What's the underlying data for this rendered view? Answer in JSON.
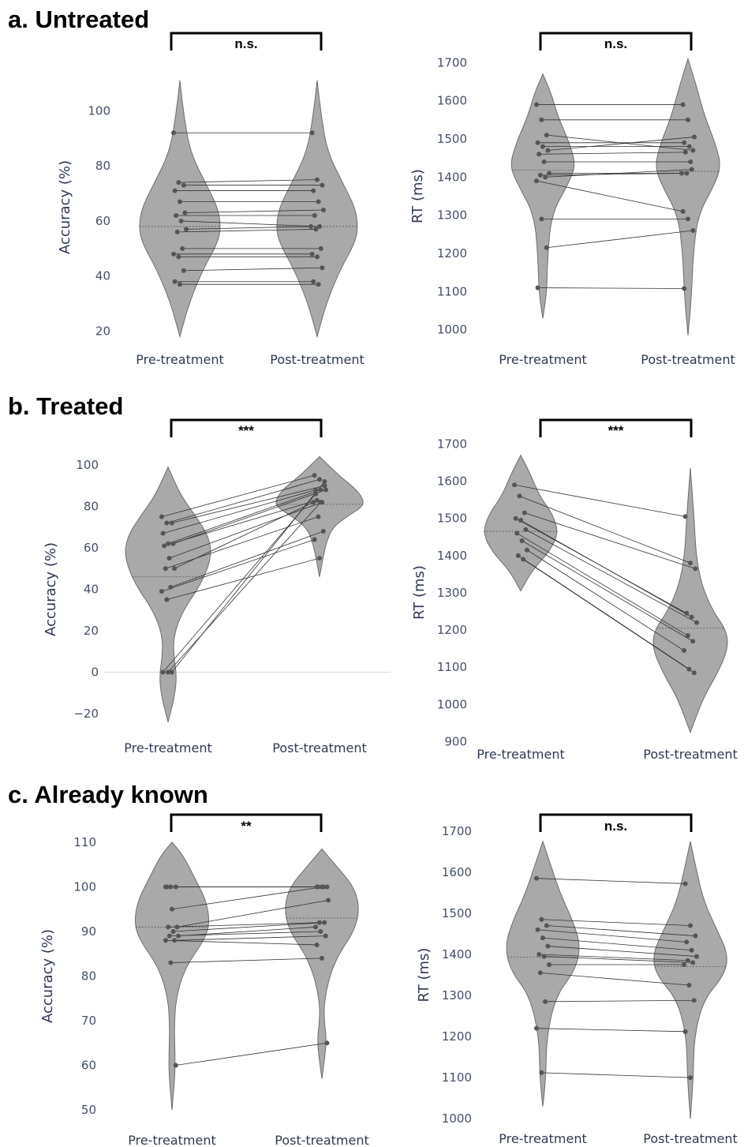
{
  "sections": [
    {
      "id": "a",
      "title": "a. Untreated"
    },
    {
      "id": "b",
      "title": "b. Treated"
    },
    {
      "id": "c",
      "title": "c. Already known"
    }
  ],
  "chart_data": [
    {
      "id": "a-acc",
      "type": "violin-paired",
      "ylabel": "Accuracy (%)",
      "categories": [
        "Pre-treatment",
        "Post-treatment"
      ],
      "yticks": [
        20,
        40,
        60,
        80,
        100
      ],
      "ylim": [
        17,
        113
      ],
      "significance": "n.s.",
      "median": [
        58,
        58
      ],
      "profile": [
        {
          "y": [
            18,
            30,
            42,
            52,
            58,
            65,
            73,
            85,
            98,
            111
          ],
          "w": [
            0,
            0.22,
            0.55,
            0.92,
            1.0,
            0.92,
            0.65,
            0.25,
            0.1,
            0
          ]
        },
        {
          "y": [
            18,
            30,
            42,
            52,
            58,
            65,
            73,
            85,
            98,
            111
          ],
          "w": [
            0,
            0.22,
            0.55,
            0.92,
            1.0,
            0.92,
            0.65,
            0.25,
            0.1,
            0
          ]
        }
      ],
      "pre": [
        92,
        74,
        73,
        71,
        67,
        63,
        62,
        60,
        57,
        56,
        50,
        48,
        47,
        42,
        38,
        37
      ],
      "post": [
        92,
        75,
        73,
        71,
        67,
        64,
        62,
        58,
        58,
        57,
        50,
        48,
        47,
        43,
        38,
        37
      ]
    },
    {
      "id": "a-rt",
      "type": "violin-paired",
      "ylabel": "RT (ms)",
      "categories": [
        "Pre-treatment",
        "Post-treatment"
      ],
      "yticks": [
        1000,
        1100,
        1200,
        1300,
        1400,
        1500,
        1600,
        1700
      ],
      "ylim": [
        985,
        1715
      ],
      "significance": "n.s.",
      "median": [
        1418,
        1415
      ],
      "profile": [
        {
          "y": [
            1030,
            1100,
            1180,
            1300,
            1380,
            1430,
            1490,
            1560,
            1620,
            1670
          ],
          "w": [
            0,
            0.12,
            0.14,
            0.25,
            0.75,
            1.0,
            0.8,
            0.45,
            0.25,
            0
          ]
        },
        {
          "y": [
            985,
            1080,
            1200,
            1300,
            1380,
            1430,
            1490,
            1560,
            1640,
            1710
          ],
          "w": [
            0,
            0.1,
            0.16,
            0.3,
            0.8,
            1.0,
            0.82,
            0.5,
            0.25,
            0
          ]
        }
      ],
      "pre": [
        1590,
        1550,
        1510,
        1490,
        1480,
        1470,
        1460,
        1440,
        1410,
        1405,
        1400,
        1390,
        1290,
        1215,
        1110
      ],
      "post": [
        1590,
        1550,
        1470,
        1490,
        1480,
        1505,
        1465,
        1440,
        1410,
        1410,
        1420,
        1310,
        1290,
        1260,
        1108
      ]
    },
    {
      "id": "b-acc",
      "type": "violin-paired",
      "ylabel": "Accuracy (%)",
      "categories": [
        "Pre-treatment",
        "Post-treatment"
      ],
      "yticks": [
        -20,
        0,
        20,
        40,
        60,
        80,
        100
      ],
      "ylim": [
        -28,
        108
      ],
      "significance": "***",
      "median": [
        46,
        81
      ],
      "zero_line": true,
      "profile": [
        {
          "y": [
            -24,
            -12,
            -2,
            8,
            18,
            30,
            42,
            55,
            65,
            75,
            85,
            99
          ],
          "w": [
            0,
            0.15,
            0.2,
            0.13,
            0.13,
            0.35,
            0.75,
            1.0,
            0.95,
            0.65,
            0.3,
            0
          ]
        },
        {
          "y": [
            46,
            55,
            62,
            70,
            76,
            80,
            84,
            89,
            94,
            99,
            104
          ],
          "w": [
            0,
            0.08,
            0.15,
            0.3,
            0.7,
            1.0,
            1.0,
            0.8,
            0.5,
            0.25,
            0
          ]
        }
      ],
      "pre": [
        75,
        72,
        72,
        67,
        62,
        62,
        61,
        55,
        50,
        50,
        41,
        39,
        35,
        0,
        0,
        0
      ],
      "post": [
        95,
        93,
        90,
        88,
        88,
        88,
        83,
        82,
        82,
        75,
        68,
        64,
        55,
        92,
        86,
        82
      ]
    },
    {
      "id": "b-rt",
      "type": "violin-paired",
      "ylabel": "RT (ms)",
      "categories": [
        "Pre-treatment",
        "Post-treatment"
      ],
      "yticks": [
        900,
        1000,
        1100,
        1200,
        1300,
        1400,
        1500,
        1600,
        1700
      ],
      "ylim": [
        882,
        1720
      ],
      "significance": "***",
      "median": [
        1465,
        1205
      ],
      "profile": [
        {
          "y": [
            1305,
            1360,
            1410,
            1460,
            1510,
            1560,
            1620,
            1670
          ],
          "w": [
            0,
            0.3,
            0.75,
            1.0,
            0.85,
            0.5,
            0.25,
            0
          ]
        },
        {
          "y": [
            925,
            1020,
            1080,
            1150,
            1200,
            1250,
            1320,
            1400,
            1500,
            1635
          ],
          "w": [
            0,
            0.35,
            0.7,
            1.0,
            0.95,
            0.6,
            0.3,
            0.15,
            0.1,
            0
          ]
        }
      ],
      "pre": [
        1590,
        1560,
        1515,
        1500,
        1495,
        1470,
        1460,
        1440,
        1415,
        1400,
        1390
      ],
      "post": [
        1505,
        1380,
        1365,
        1245,
        1235,
        1220,
        1185,
        1170,
        1145,
        1095,
        1085
      ]
    },
    {
      "id": "c-acc",
      "type": "violin-paired",
      "ylabel": "Accuracy (%)",
      "categories": [
        "Pre-treatment",
        "Post-treatment"
      ],
      "yticks": [
        50,
        60,
        70,
        80,
        90,
        100,
        110
      ],
      "ylim": [
        47,
        113
      ],
      "significance": "**",
      "median": [
        91,
        93
      ],
      "profile": [
        {
          "y": [
            50,
            58,
            63,
            68,
            75,
            82,
            88,
            92,
            97,
            102,
            107,
            110
          ],
          "w": [
            0,
            0.08,
            0.08,
            0.06,
            0.1,
            0.35,
            0.85,
            1.0,
            0.9,
            0.6,
            0.3,
            0
          ]
        },
        {
          "y": [
            57,
            62,
            66,
            70,
            74,
            80,
            85,
            90,
            95,
            100,
            105,
            108.5
          ],
          "w": [
            0,
            0.08,
            0.12,
            0.06,
            0.06,
            0.2,
            0.45,
            0.85,
            1.0,
            0.85,
            0.35,
            0
          ]
        }
      ],
      "pre": [
        100,
        100,
        100,
        100,
        95,
        91,
        91,
        90,
        89,
        89,
        88,
        88,
        83,
        60
      ],
      "post": [
        100,
        100,
        100,
        100,
        100,
        97,
        92,
        92,
        91,
        90,
        89,
        87,
        84,
        65
      ]
    },
    {
      "id": "c-rt",
      "type": "violin-paired",
      "ylabel": "RT (ms)",
      "categories": [
        "Pre-treatment",
        "Post-treatment"
      ],
      "yticks": [
        1000,
        1100,
        1200,
        1300,
        1400,
        1500,
        1600,
        1700
      ],
      "ylim": [
        985,
        1715
      ],
      "significance": "n.s.",
      "median": [
        1393,
        1370
      ],
      "profile": [
        {
          "y": [
            1030,
            1100,
            1200,
            1300,
            1360,
            1420,
            1480,
            1550,
            1620,
            1675
          ],
          "w": [
            0,
            0.08,
            0.1,
            0.35,
            0.85,
            1.0,
            0.8,
            0.45,
            0.2,
            0
          ]
        },
        {
          "y": [
            1000,
            1100,
            1200,
            1290,
            1350,
            1400,
            1460,
            1530,
            1610,
            1675
          ],
          "w": [
            0,
            0.08,
            0.1,
            0.35,
            0.9,
            1.0,
            0.7,
            0.35,
            0.15,
            0
          ]
        }
      ],
      "pre": [
        1585,
        1485,
        1470,
        1460,
        1440,
        1420,
        1400,
        1395,
        1375,
        1355,
        1285,
        1220,
        1112
      ],
      "post": [
        1572,
        1470,
        1445,
        1430,
        1410,
        1395,
        1385,
        1380,
        1375,
        1325,
        1288,
        1212,
        1100
      ]
    }
  ]
}
